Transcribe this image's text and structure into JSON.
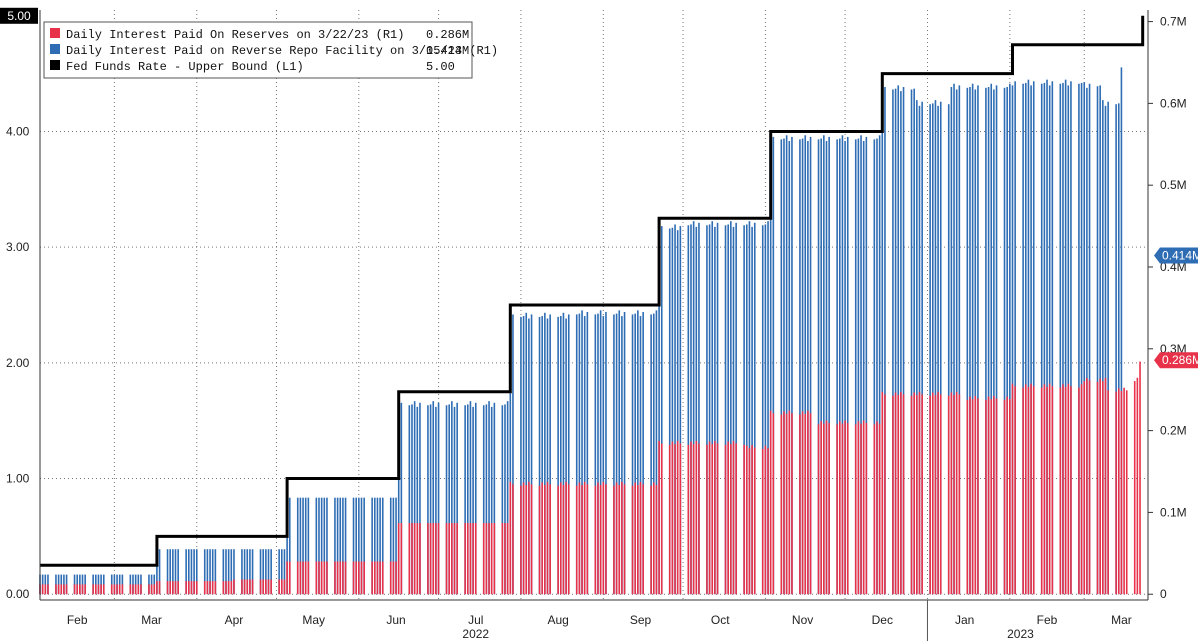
{
  "chart_data": {
    "type": "bar",
    "legend": {
      "placement": "top-left",
      "entries": [
        {
          "name": "Daily Interest Paid On Reserves on 3/22/23 (R1)",
          "value": "0.286M",
          "color": "#e8324a"
        },
        {
          "name": "Daily Interest Paid on Reverse Repo Facility on 3/15/23 (R1)",
          "value": "0.414M",
          "color": "#2e6db4"
        },
        {
          "name": "Fed Funds Rate - Upper Bound (L1)",
          "value": "5.00",
          "color": "#000000"
        }
      ]
    },
    "left_axis": {
      "ylim": [
        -0.05,
        5.05
      ],
      "ticks": [
        "0.00",
        "1.00",
        "2.00",
        "3.00",
        "4.00"
      ],
      "tick_values": [
        0,
        1,
        2,
        3,
        4
      ],
      "last_value_tag": "5.00"
    },
    "right_axis": {
      "ylim": [
        0,
        0.7
      ],
      "ticks": [
        "0",
        "0.1M",
        "0.2M",
        "0.3M",
        "0.4M",
        "0.5M",
        "0.6M",
        "0.7M"
      ],
      "tick_values": [
        0,
        0.1,
        0.2,
        0.3,
        0.4,
        0.5,
        0.6,
        0.7
      ],
      "last_value_tags": [
        {
          "label": "0.414M",
          "value": 0.414,
          "color": "#2e6db4"
        },
        {
          "label": "0.286M",
          "value": 0.286,
          "color": "#e8324a"
        }
      ]
    },
    "x_axis": {
      "start": "2022-02-01",
      "end": "2023-03-25",
      "month_ticks": [
        {
          "label": "Feb",
          "date": "2022-02-15"
        },
        {
          "label": "Mar",
          "date": "2022-03-15"
        },
        {
          "label": "Apr",
          "date": "2022-04-15"
        },
        {
          "label": "May",
          "date": "2022-05-15"
        },
        {
          "label": "Jun",
          "date": "2022-06-15"
        },
        {
          "label": "Jul",
          "date": "2022-07-15"
        },
        {
          "label": "Aug",
          "date": "2022-08-15"
        },
        {
          "label": "Sep",
          "date": "2022-09-15"
        },
        {
          "label": "Oct",
          "date": "2022-10-15"
        },
        {
          "label": "Nov",
          "date": "2022-11-15"
        },
        {
          "label": "Dec",
          "date": "2022-12-15"
        },
        {
          "label": "Jan",
          "date": "2023-01-15"
        },
        {
          "label": "Feb",
          "date": "2023-02-15"
        },
        {
          "label": "Mar",
          "date": "2023-03-15"
        }
      ],
      "year_labels": [
        {
          "label": "2022",
          "date": "2022-07-15"
        },
        {
          "label": "2023",
          "date": "2023-02-05"
        }
      ],
      "year_divider": "2023-01-01"
    },
    "grid": true,
    "fed_funds_upper": [
      {
        "date": "2022-02-01",
        "value": 0.25
      },
      {
        "date": "2022-03-17",
        "value": 0.5
      },
      {
        "date": "2022-05-05",
        "value": 1.0
      },
      {
        "date": "2022-06-16",
        "value": 1.75
      },
      {
        "date": "2022-07-28",
        "value": 2.5
      },
      {
        "date": "2022-09-22",
        "value": 3.25
      },
      {
        "date": "2022-11-03",
        "value": 4.0
      },
      {
        "date": "2022-12-15",
        "value": 4.5
      },
      {
        "date": "2023-02-02",
        "value": 4.75
      },
      {
        "date": "2023-03-23",
        "value": 5.0
      }
    ],
    "reserves_interest": [
      {
        "from": "2022-02-01",
        "value": 0.012
      },
      {
        "from": "2022-03-17",
        "value": 0.016
      },
      {
        "from": "2022-04-15",
        "value": 0.018
      },
      {
        "from": "2022-05-05",
        "value": 0.04
      },
      {
        "from": "2022-06-16",
        "value": 0.087
      },
      {
        "from": "2022-07-28",
        "value": 0.135
      },
      {
        "from": "2022-09-22",
        "value": 0.185
      },
      {
        "from": "2022-10-25",
        "value": 0.18
      },
      {
        "from": "2022-11-03",
        "value": 0.222
      },
      {
        "from": "2022-11-20",
        "value": 0.21
      },
      {
        "from": "2022-12-15",
        "value": 0.245
      },
      {
        "from": "2023-01-15",
        "value": 0.24
      },
      {
        "from": "2023-02-02",
        "value": 0.255
      },
      {
        "from": "2023-03-01",
        "value": 0.262
      },
      {
        "from": "2023-03-10",
        "value": 0.25
      },
      {
        "from": "2023-03-18",
        "value": 0.263
      },
      {
        "from": "2023-03-22",
        "value": 0.286
      }
    ],
    "total_interest": [
      {
        "from": "2022-02-01",
        "value": 0.024
      },
      {
        "from": "2022-03-17",
        "value": 0.055
      },
      {
        "from": "2022-05-05",
        "value": 0.118
      },
      {
        "from": "2022-06-16",
        "value": 0.232
      },
      {
        "from": "2022-07-28",
        "value": 0.34
      },
      {
        "from": "2022-08-20",
        "value": 0.343
      },
      {
        "from": "2022-09-22",
        "value": 0.448
      },
      {
        "from": "2022-10-01",
        "value": 0.452
      },
      {
        "from": "2022-11-03",
        "value": 0.557
      },
      {
        "from": "2022-12-15",
        "value": 0.618
      },
      {
        "from": "2022-12-28",
        "value": 0.6
      },
      {
        "from": "2023-01-10",
        "value": 0.62
      },
      {
        "from": "2023-02-02",
        "value": 0.625
      },
      {
        "from": "2023-03-01",
        "value": 0.622
      },
      {
        "from": "2023-03-08",
        "value": 0.6
      },
      {
        "from": "2023-03-15",
        "value": 0.64
      },
      {
        "from": "2023-03-16",
        "value": 0.0
      }
    ]
  }
}
